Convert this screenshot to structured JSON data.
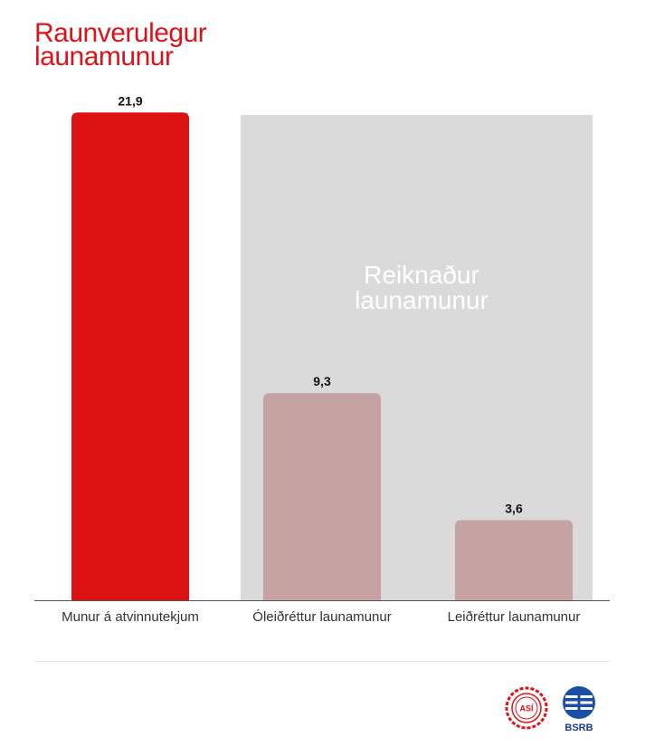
{
  "title_lines": [
    "Raunverulegur",
    "launamunur"
  ],
  "colors": {
    "accent_red": "#db1112",
    "muted_bar": "#c6a2a2",
    "shade_panel": "#dadada",
    "shade_label": "#ffffff"
  },
  "chart_data": {
    "type": "bar",
    "categories": [
      "Munur á atvinnutekjum",
      "Óleiðréttur launamunur",
      "Leiðréttur launamunur"
    ],
    "values": [
      21.9,
      9.3,
      3.6
    ],
    "value_labels": [
      "21,9",
      "9,3",
      "3,6"
    ],
    "ylim": [
      0,
      24
    ],
    "grid": false,
    "annotation": {
      "lines": [
        "Reiknaður",
        "launamunur"
      ]
    }
  },
  "logos": [
    "ASÍ",
    "BSRB"
  ]
}
